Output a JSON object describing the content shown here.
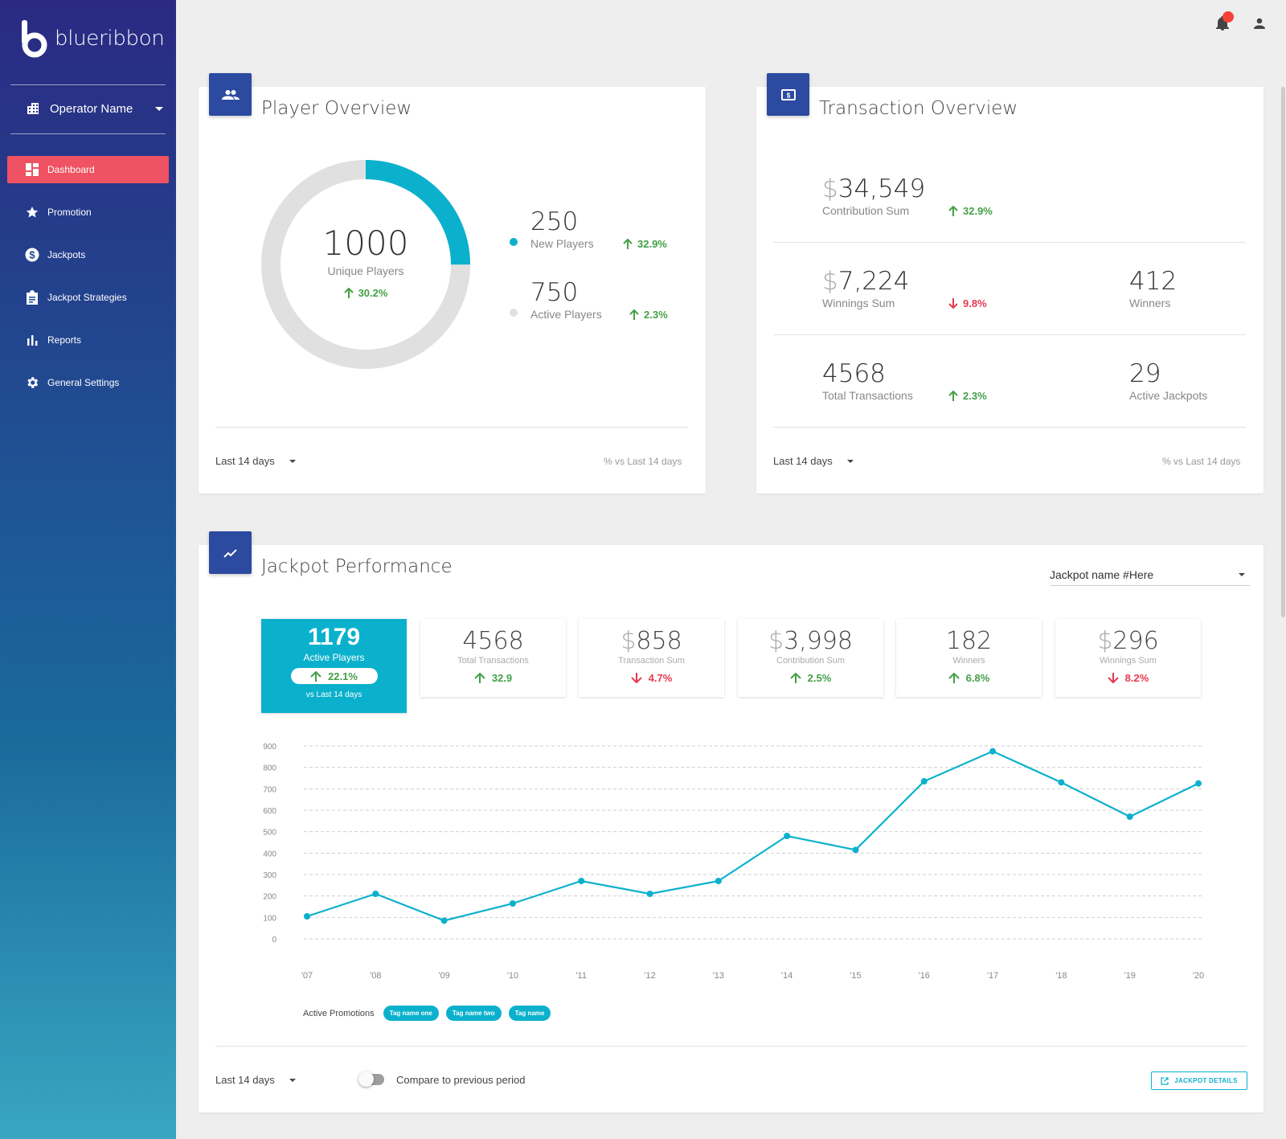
{
  "app": {
    "name": "blueribbon"
  },
  "sidebar": {
    "operator": "Operator Name",
    "items": [
      {
        "label": "Dashboard",
        "icon": "dashboard-icon",
        "active": true
      },
      {
        "label": "Promotion",
        "icon": "star-icon"
      },
      {
        "label": "Jackpots",
        "icon": "dollar-circle-icon"
      },
      {
        "label": "Jackpot Strategies",
        "icon": "clipboard-icon"
      },
      {
        "label": "Reports",
        "icon": "bar-chart-icon"
      },
      {
        "label": "General Settings",
        "icon": "gear-icon"
      }
    ]
  },
  "player_overview": {
    "title": "Player Overview",
    "unique_value": "1000",
    "unique_label": "Unique Players",
    "unique_delta": "30.2%",
    "new_value": "250",
    "new_label": "New Players",
    "new_delta": "32.9%",
    "active_value": "750",
    "active_label": "Active Players",
    "active_delta": "2.3%",
    "donut_new_fraction": 0.25,
    "period": "Last 14 days",
    "vs": "% vs Last 14 days",
    "colors": {
      "new": "#0bb1cc",
      "active": "#e0e0e0"
    }
  },
  "transaction_overview": {
    "title": "Transaction Overview",
    "contribution_value": "34,549",
    "contribution_label": "Contribution Sum",
    "contribution_delta": "32.9%",
    "winnings_value": "7,224",
    "winnings_label": "Winnings Sum",
    "winnings_delta": "9.8%",
    "winners_value": "412",
    "winners_label": "Winners",
    "transactions_value": "4568",
    "transactions_label": "Total Transactions",
    "transactions_delta": "2.3%",
    "jackpots_value": "29",
    "jackpots_label": "Active Jackpots",
    "currency": "$",
    "period": "Last 14 days",
    "vs": "% vs Last 14 days"
  },
  "jackpot_performance": {
    "title": "Jackpot Performance",
    "select_value": "Jackpot name #Here",
    "tiles": [
      {
        "value": "1179",
        "label": "Active Players",
        "delta": "22.1%",
        "dir": "up",
        "vs": "vs Last 14 days"
      },
      {
        "value": "4568",
        "label": "Total Transactions",
        "delta": "32.9",
        "dir": "up"
      },
      {
        "value": "858",
        "label": "Transaction Sum",
        "delta": "4.7%",
        "dir": "down",
        "currency": "$"
      },
      {
        "value": "3,998",
        "label": "Contribution Sum",
        "delta": "2.5%",
        "dir": "up",
        "currency": "$"
      },
      {
        "value": "182",
        "label": "Winners",
        "delta": "6.8%",
        "dir": "up"
      },
      {
        "value": "296",
        "label": "Winnings Sum",
        "delta": "8.2%",
        "dir": "down",
        "currency": "$"
      }
    ],
    "promotions_label": "Active Promotions",
    "tags": [
      "Tag name one",
      "Tag name two",
      "Tag name"
    ],
    "period": "Last 14 days",
    "compare_label": "Compare to previous period",
    "details_button": "JACKPOT DETAILS"
  },
  "chart_data": {
    "type": "line",
    "x": [
      "'07",
      "'08",
      "'09",
      "'10",
      "'11",
      "'12",
      "'13",
      "'14",
      "'15",
      "'16",
      "'17",
      "'18",
      "'19",
      "'20"
    ],
    "series": [
      {
        "values": [
          105,
          210,
          85,
          165,
          270,
          210,
          270,
          480,
          415,
          735,
          875,
          730,
          570,
          725
        ]
      }
    ],
    "yticks": [
      0,
      100,
      200,
      300,
      400,
      500,
      600,
      700,
      800,
      900
    ],
    "ylim": [
      0,
      900
    ],
    "grid": true,
    "color": "#0bb1cc"
  }
}
